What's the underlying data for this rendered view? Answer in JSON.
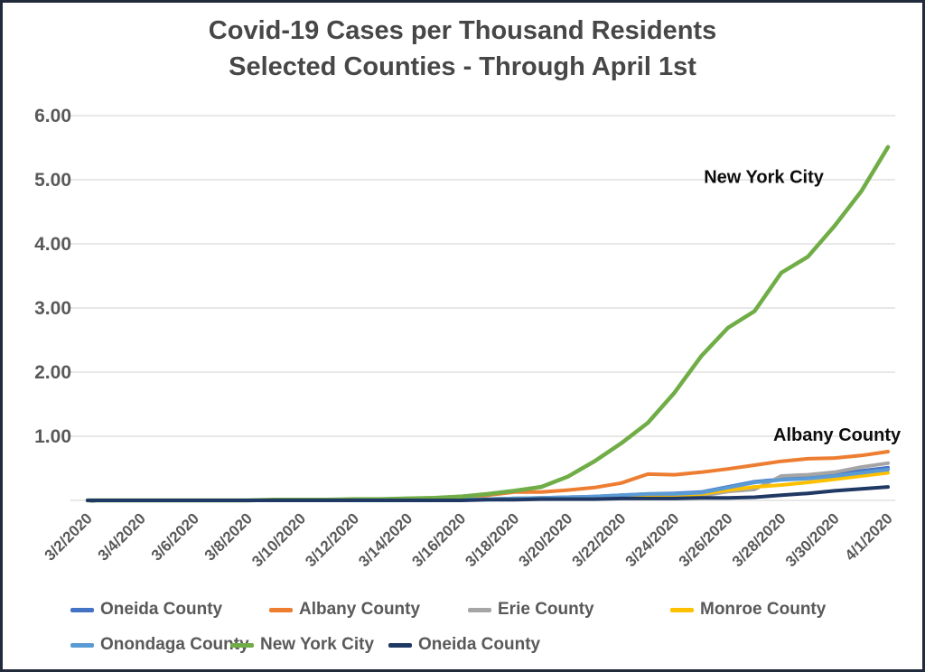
{
  "title": {
    "line1": "Covid-19 Cases per Thousand Residents",
    "line2": "Selected Counties - Through April 1st"
  },
  "chart_data": {
    "type": "line",
    "title": "Covid-19 Cases per Thousand Residents Selected Counties - Through April 1st",
    "xlabel": "",
    "ylabel": "",
    "ylim": [
      0,
      6
    ],
    "grid": true,
    "legend_position": "bottom",
    "y_ticks": [
      {
        "value": 6,
        "label": "6.00"
      },
      {
        "value": 5,
        "label": "5.00"
      },
      {
        "value": 4,
        "label": "4.00"
      },
      {
        "value": 3,
        "label": "3.00"
      },
      {
        "value": 2,
        "label": "2.00"
      },
      {
        "value": 1,
        "label": "1.00"
      },
      {
        "value": 0,
        "label": "-"
      }
    ],
    "x": [
      "3/2/2020",
      "3/3/2020",
      "3/4/2020",
      "3/5/2020",
      "3/6/2020",
      "3/7/2020",
      "3/8/2020",
      "3/9/2020",
      "3/10/2020",
      "3/11/2020",
      "3/12/2020",
      "3/13/2020",
      "3/14/2020",
      "3/15/2020",
      "3/16/2020",
      "3/17/2020",
      "3/18/2020",
      "3/19/2020",
      "3/20/2020",
      "3/21/2020",
      "3/22/2020",
      "3/23/2020",
      "3/24/2020",
      "3/25/2020",
      "3/26/2020",
      "3/27/2020",
      "3/28/2020",
      "3/29/2020",
      "3/30/2020",
      "3/31/2020",
      "4/1/2020"
    ],
    "x_tick_labels": [
      "3/2/2020",
      "3/4/2020",
      "3/6/2020",
      "3/8/2020",
      "3/10/2020",
      "3/12/2020",
      "3/14/2020",
      "3/16/2020",
      "3/18/2020",
      "3/20/2020",
      "3/22/2020",
      "3/24/2020",
      "3/26/2020",
      "3/28/2020",
      "3/30/2020",
      "4/1/2020"
    ],
    "series": [
      {
        "name": "Oneida County",
        "slug": "oneida-county",
        "color": "#4472C4",
        "width": 4,
        "values": [
          0,
          0,
          0,
          0,
          0,
          0,
          0,
          0,
          0,
          0,
          0,
          0,
          0,
          0.01,
          0.02,
          0.02,
          0.03,
          0.04,
          0.05,
          0.06,
          0.08,
          0.1,
          0.11,
          0.13,
          0.21,
          0.29,
          0.33,
          0.36,
          0.4,
          0.46,
          0.51
        ]
      },
      {
        "name": "Albany County",
        "slug": "albany-county",
        "color": "#ED7D31",
        "width": 4,
        "values": [
          0,
          0,
          0,
          0,
          0,
          0,
          0,
          0,
          0,
          0,
          0.01,
          0.02,
          0.03,
          0.04,
          0.06,
          0.08,
          0.13,
          0.13,
          0.16,
          0.2,
          0.27,
          0.41,
          0.4,
          0.44,
          0.49,
          0.55,
          0.61,
          0.65,
          0.66,
          0.7,
          0.76
        ]
      },
      {
        "name": "Erie County",
        "slug": "erie-county",
        "color": "#A5A5A5",
        "width": 4,
        "values": [
          0,
          0,
          0,
          0,
          0,
          0,
          0,
          0,
          0,
          0,
          0,
          0,
          0,
          0,
          0.01,
          0.02,
          0.03,
          0.03,
          0.04,
          0.05,
          0.05,
          0.06,
          0.06,
          0.07,
          0.14,
          0.17,
          0.38,
          0.4,
          0.44,
          0.52,
          0.58
        ]
      },
      {
        "name": "Monroe County",
        "slug": "monroe-county",
        "color": "#FFC000",
        "width": 4,
        "values": [
          0,
          0,
          0,
          0,
          0,
          0,
          0,
          0,
          0,
          0,
          0,
          0,
          0,
          0.01,
          0.02,
          0.02,
          0.03,
          0.04,
          0.04,
          0.05,
          0.06,
          0.07,
          0.08,
          0.1,
          0.16,
          0.21,
          0.24,
          0.28,
          0.33,
          0.38,
          0.43
        ]
      },
      {
        "name": "Onondaga County",
        "slug": "onondaga-county",
        "color": "#5B9BD5",
        "width": 4,
        "values": [
          0,
          0,
          0,
          0,
          0,
          0,
          0,
          0,
          0,
          0,
          0,
          0,
          0,
          0.01,
          0.01,
          0.02,
          0.03,
          0.04,
          0.05,
          0.06,
          0.08,
          0.1,
          0.1,
          0.12,
          0.2,
          0.28,
          0.32,
          0.34,
          0.38,
          0.43,
          0.48
        ]
      },
      {
        "name": "New York City",
        "slug": "new-york-city",
        "color": "#70AD47",
        "width": 4.5,
        "values": [
          0,
          0,
          0,
          0,
          0,
          0,
          0,
          0.01,
          0.01,
          0.01,
          0.02,
          0.02,
          0.03,
          0.04,
          0.06,
          0.1,
          0.15,
          0.21,
          0.37,
          0.61,
          0.89,
          1.21,
          1.68,
          2.25,
          2.69,
          2.95,
          3.55,
          3.8,
          4.28,
          4.82,
          5.51
        ]
      },
      {
        "name": "Oneida County",
        "slug": "oneida-county-2",
        "color": "#203864",
        "width": 4,
        "values": [
          0,
          0,
          0,
          0,
          0,
          0,
          0,
          0,
          0,
          0,
          0,
          0,
          0,
          0,
          0,
          0.01,
          0.01,
          0.02,
          0.02,
          0.02,
          0.03,
          0.03,
          0.03,
          0.04,
          0.04,
          0.05,
          0.08,
          0.11,
          0.15,
          0.18,
          0.21
        ]
      }
    ],
    "annotations": [
      {
        "text": "New York City",
        "slug": "new-york-city",
        "x_index": 23.1,
        "value": 4.95
      },
      {
        "text": "Albany County",
        "slug": "albany-county",
        "x_index": 25.7,
        "value": 0.93
      }
    ]
  }
}
